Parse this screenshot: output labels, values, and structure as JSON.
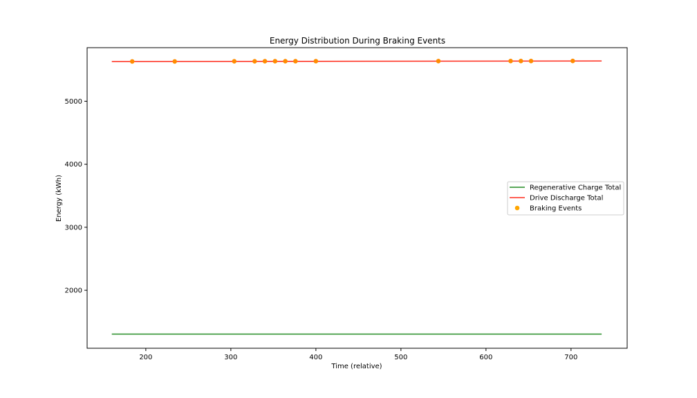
{
  "chart_data": {
    "type": "line",
    "title": "Energy Distribution During Braking Events",
    "xlabel": "Time (relative)",
    "ylabel": "Energy (kWh)",
    "xlim": [
      131,
      766
    ],
    "ylim": [
      1080,
      5850
    ],
    "xticks": [
      200,
      300,
      400,
      500,
      600,
      700
    ],
    "yticks": [
      2000,
      3000,
      4000,
      5000
    ],
    "grid": false,
    "legend_position": "center-right",
    "series": [
      {
        "name": "Regenerative Charge Total",
        "kind": "line",
        "color": "#228B22",
        "x": [
          160,
          736
        ],
        "y": [
          1305,
          1305
        ]
      },
      {
        "name": "Drive Discharge Total",
        "kind": "line",
        "color": "#ff2a1a",
        "x": [
          160,
          736
        ],
        "y": [
          5630,
          5640
        ]
      },
      {
        "name": "Braking Events",
        "kind": "scatter",
        "color": "#ff8c00",
        "legend_color": "#ffa500",
        "x": [
          184,
          234,
          304,
          328,
          340,
          352,
          364,
          376,
          400,
          544,
          629,
          641,
          653,
          702
        ],
        "y": [
          5632,
          5632,
          5634,
          5634,
          5635,
          5635,
          5635,
          5635,
          5636,
          5637,
          5638,
          5638,
          5638,
          5639
        ]
      }
    ]
  }
}
